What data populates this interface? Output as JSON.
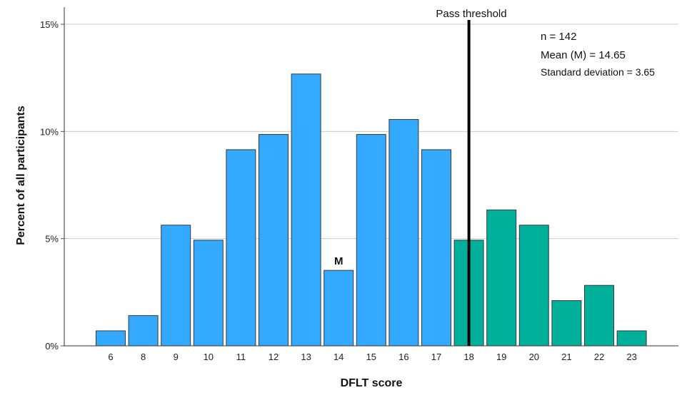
{
  "chart_data": {
    "type": "bar",
    "xlabel": "DFLT score",
    "ylabel": "Percent of all participants",
    "ylim": [
      0,
      15.8
    ],
    "yticks": [
      0,
      5,
      10,
      15
    ],
    "ytick_labels": [
      "0%",
      "5%",
      "10%",
      "15%"
    ],
    "grid": "horizontal",
    "categories": [
      "6",
      "8",
      "9",
      "10",
      "11",
      "12",
      "13",
      "14",
      "15",
      "16",
      "17",
      "18",
      "19",
      "20",
      "21",
      "22",
      "23"
    ],
    "values": [
      0.7,
      1.41,
      5.63,
      4.93,
      9.15,
      9.86,
      12.68,
      3.52,
      9.86,
      10.56,
      9.15,
      4.93,
      6.34,
      5.63,
      2.11,
      2.82,
      0.7
    ],
    "colors": {
      "below_threshold": "#33aaff",
      "at_or_above_threshold": "#00b09b",
      "threshold_line": "#000000",
      "grid": "#c8c8c8"
    },
    "threshold": {
      "value": "18",
      "label": "Pass threshold"
    },
    "mean_marker": {
      "category": "14",
      "label": "M"
    },
    "stats": {
      "n": "n = 142",
      "mean": "Mean (M) = 14.65",
      "sd": "Standard deviation = 3.65"
    }
  }
}
